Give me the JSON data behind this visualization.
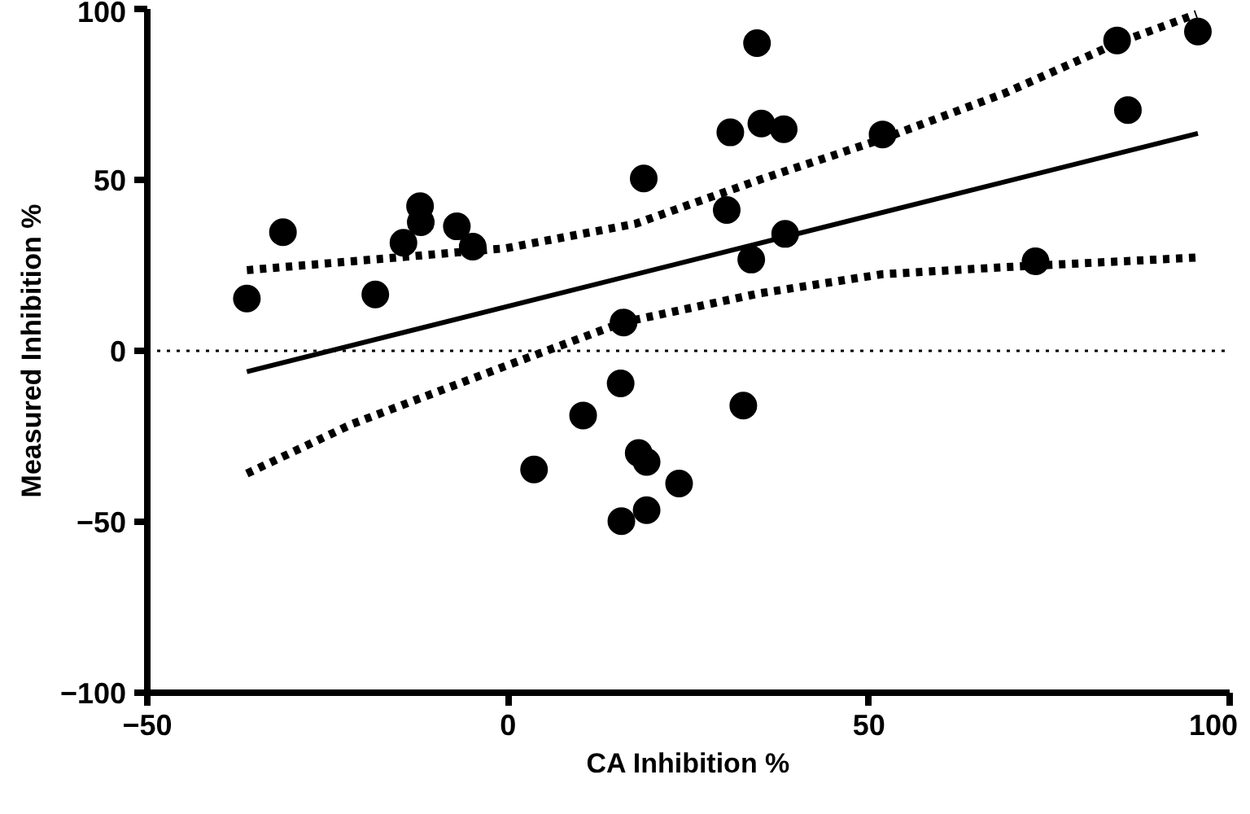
{
  "chart_data": {
    "type": "scatter",
    "xlabel": "CA Inhibition %",
    "ylabel": "Measured Inhibition %",
    "xlim": [
      -50,
      100
    ],
    "ylim": [
      -100,
      100
    ],
    "xticks": [
      -50,
      0,
      50,
      100
    ],
    "yticks": [
      -100,
      -50,
      0,
      50,
      100
    ],
    "grid": false,
    "ref_lines": [
      {
        "axis": "y",
        "value": 0,
        "color": "#000000",
        "line_style": "dotted"
      }
    ],
    "series": [
      {
        "color": "#000000",
        "marker": "circle",
        "x": [
          -36.2,
          -31.2,
          -18.4,
          -14.5,
          -12.2,
          -12.1,
          -7.1,
          -4.9,
          18.8,
          16.0,
          15.6,
          10.4,
          3.6,
          18.1,
          19.2,
          23.7,
          15.7,
          19.2,
          32.6,
          34.5,
          30.8,
          35.1,
          38.2,
          30.3,
          38.4,
          33.7,
          51.9,
          73.1,
          84.4,
          85.9,
          95.6
        ],
        "values": [
          15.3,
          34.7,
          16.5,
          31.6,
          42.3,
          37.6,
          36.4,
          30.5,
          50.4,
          8.3,
          -9.5,
          -18.9,
          -34.7,
          -29.9,
          -32.5,
          -38.8,
          -49.8,
          -46.6,
          -16.0,
          90.0,
          63.9,
          66.5,
          64.8,
          41.2,
          34.2,
          26.7,
          63.3,
          26.2,
          90.8,
          70.4,
          93.4
        ]
      },
      {
        "type": "line",
        "color": "#000000",
        "line_style": "solid",
        "x": [
          -36.2,
          95.6
        ],
        "values": [
          -6.1,
          63.6
        ]
      },
      {
        "type": "line",
        "color": "#000000",
        "line_style": "dashed",
        "x": [
          -36.2,
          -21.6,
          -0.3,
          17.7,
          34.8,
          51.8,
          69,
          84.4,
          95.4
        ],
        "values": [
          23.6,
          26.2,
          30,
          37.2,
          50,
          61.9,
          75.5,
          90,
          98.5
        ]
      },
      {
        "type": "line",
        "color": "#000000",
        "line_style": "dashed",
        "x": [
          -36.2,
          -21.6,
          -0.3,
          15.9,
          34.8,
          51.8,
          69,
          92.8,
          95.4
        ],
        "values": [
          -35.9,
          -21.4,
          -4.4,
          8.3,
          16.8,
          22.4,
          24.5,
          27.0,
          27.3
        ]
      }
    ]
  }
}
